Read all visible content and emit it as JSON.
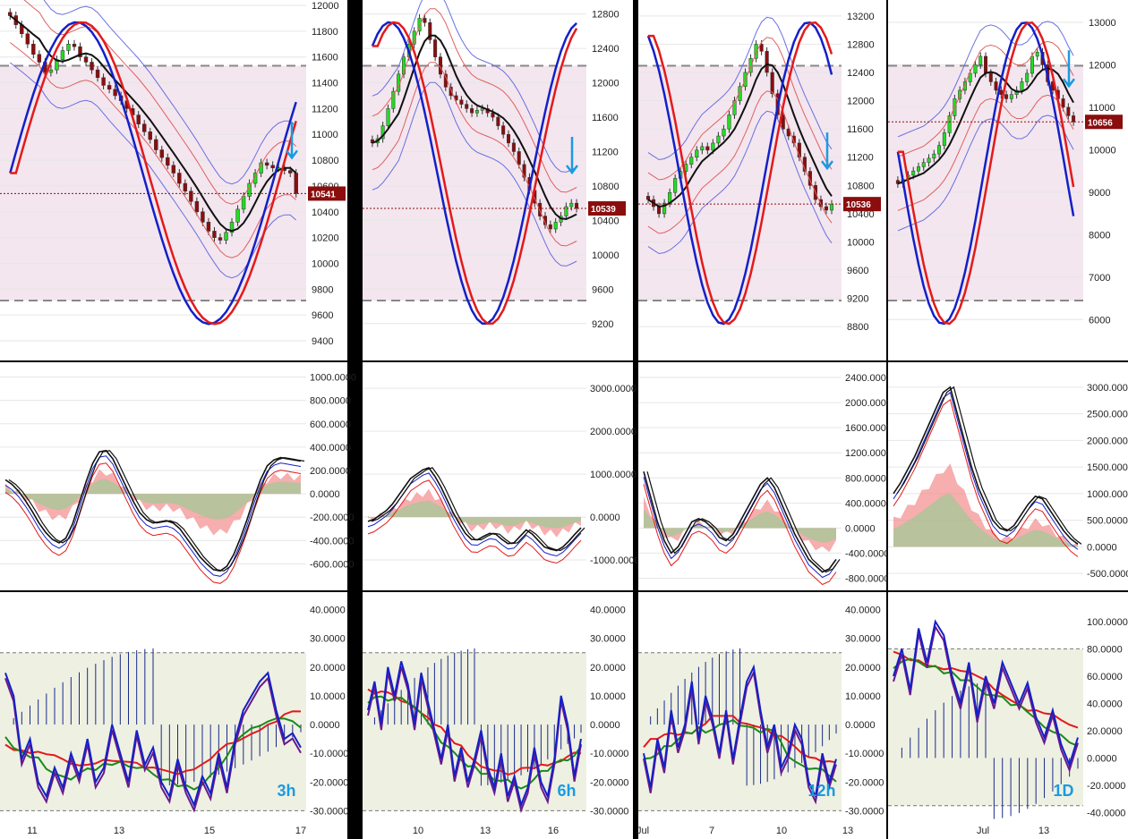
{
  "chart_data": [
    {
      "type": "candlestick",
      "timeframe": "3h",
      "current_price": "10541",
      "x_ticks": [
        "11",
        "13",
        "15",
        "17"
      ],
      "price_ticks": [
        "12000",
        "11800",
        "11600",
        "11400",
        "11200",
        "11000",
        "10800",
        "10600",
        "10400",
        "10200",
        "10000",
        "9800",
        "9600",
        "9400"
      ],
      "price_range": [
        9400,
        12000
      ],
      "price_close": [
        11920,
        11850,
        11780,
        11700,
        11620,
        11560,
        11480,
        11500,
        11580,
        11650,
        11700,
        11680,
        11600,
        11560,
        11500,
        11440,
        11380,
        11350,
        11300,
        11260,
        11200,
        11150,
        11080,
        11020,
        10960,
        10880,
        10820,
        10760,
        10700,
        10620,
        10560,
        10480,
        10400,
        10320,
        10250,
        10200,
        10180,
        10240,
        10320,
        10420,
        10520,
        10620,
        10700,
        10780,
        10760,
        10740,
        10740,
        10720,
        10700,
        10541
      ],
      "macd_ticks": [
        "1000.0000",
        "800.0000",
        "600.0000",
        "400.0000",
        "200.0000",
        "0.0000",
        "-200.0000",
        "-400.0000",
        "-600.0000"
      ],
      "macd_range": [
        -750,
        1050
      ],
      "macd_line": [
        120,
        80,
        20,
        -60,
        -150,
        -250,
        -330,
        -390,
        -420,
        -380,
        -260,
        -80,
        100,
        260,
        360,
        370,
        300,
        180,
        60,
        -60,
        -160,
        -220,
        -250,
        -240,
        -230,
        -250,
        -300,
        -380,
        -460,
        -540,
        -600,
        -650,
        -660,
        -620,
        -520,
        -380,
        -220,
        -40,
        120,
        240,
        290,
        310,
        300,
        290,
        280
      ],
      "osc_ticks": [
        "40.0000",
        "30.0000",
        "20.0000",
        "10.0000",
        "0.0000",
        "-10.0000",
        "-20.0000",
        "-30.0000"
      ],
      "osc_range": [
        -33,
        43
      ],
      "osc_line": [
        18,
        10,
        -12,
        -5,
        -20,
        -25,
        -15,
        -22,
        -10,
        -18,
        -5,
        -20,
        -15,
        0,
        -10,
        -20,
        -2,
        -14,
        -8,
        -20,
        -25,
        -12,
        -22,
        -28,
        -18,
        -24,
        -10,
        -22,
        -5,
        5,
        10,
        15,
        18,
        5,
        -5,
        -3,
        -8
      ]
    },
    {
      "type": "candlestick",
      "timeframe": "6h",
      "current_price": "10539",
      "x_ticks": [
        "10",
        "13",
        "16"
      ],
      "price_ticks": [
        "12800",
        "12400",
        "12000",
        "11600",
        "11200",
        "10800",
        "10400",
        "10000",
        "9600",
        "9200"
      ],
      "price_range": [
        9000,
        12900
      ],
      "price_close": [
        11300,
        11350,
        11500,
        11700,
        11900,
        12100,
        12300,
        12450,
        12600,
        12750,
        12700,
        12500,
        12300,
        12100,
        11950,
        11850,
        11800,
        11750,
        11700,
        11650,
        11680,
        11700,
        11650,
        11600,
        11500,
        11400,
        11300,
        11200,
        11050,
        10900,
        10750,
        10600,
        10450,
        10350,
        10300,
        10380,
        10450,
        10560,
        10600,
        10539
      ],
      "macd_ticks": [
        "3000.0000",
        "2000.0000",
        "1000.0000",
        "0.0000",
        "-1000.0000"
      ],
      "macd_range": [
        -1500,
        3400
      ],
      "macd_line": [
        -100,
        -50,
        50,
        150,
        300,
        500,
        700,
        900,
        1000,
        1100,
        1150,
        950,
        700,
        400,
        100,
        -150,
        -380,
        -520,
        -530,
        -450,
        -380,
        -400,
        -520,
        -620,
        -600,
        -450,
        -300,
        -400,
        -550,
        -700,
        -750,
        -780,
        -700,
        -560,
        -400,
        -250
      ],
      "osc_ticks": [
        "40.0000",
        "30.0000",
        "20.0000",
        "10.0000",
        "0.0000",
        "-10.0000",
        "-20.0000",
        "-30.0000"
      ],
      "osc_range": [
        -33,
        43
      ],
      "osc_line": [
        5,
        15,
        0,
        20,
        10,
        22,
        14,
        0,
        18,
        8,
        -2,
        -12,
        0,
        -18,
        -8,
        -20,
        -12,
        -2,
        -15,
        -22,
        -10,
        -25,
        -18,
        -28,
        -22,
        -8,
        -20,
        -25,
        -12,
        10,
        0,
        -18,
        -5
      ]
    },
    {
      "type": "candlestick",
      "timeframe": "12h",
      "current_price": "10536",
      "x_ticks": [
        "Jul",
        "7",
        "10",
        "13"
      ],
      "price_ticks": [
        "13200",
        "12800",
        "12400",
        "12000",
        "11600",
        "11200",
        "10800",
        "10400",
        "10000",
        "9600",
        "9200",
        "8800"
      ],
      "price_range": [
        8600,
        13350
      ],
      "price_close": [
        10600,
        10500,
        10400,
        10550,
        10700,
        10900,
        11000,
        11100,
        11200,
        11300,
        11350,
        11300,
        11400,
        11500,
        11600,
        11800,
        12000,
        12200,
        12400,
        12600,
        12800,
        12700,
        12400,
        12100,
        11800,
        11600,
        11500,
        11400,
        11200,
        11000,
        10800,
        10600,
        10500,
        10450,
        10536
      ],
      "macd_ticks": [
        "2400.0000",
        "2000.0000",
        "1600.0000",
        "1200.0000",
        "800.0000",
        "400.0000",
        "0.0000",
        "-400.0000",
        "-800.0000"
      ],
      "macd_range": [
        -850,
        2500
      ],
      "macd_line": [
        900,
        500,
        100,
        -200,
        -400,
        -300,
        -100,
        100,
        150,
        100,
        0,
        -150,
        -200,
        -100,
        100,
        300,
        500,
        700,
        800,
        650,
        400,
        150,
        -100,
        -300,
        -500,
        -600,
        -700,
        -650,
        -500
      ],
      "osc_ticks": [
        "40.0000",
        "30.0000",
        "20.0000",
        "10.0000",
        "0.0000",
        "-10.0000",
        "-20.0000",
        "-30.0000"
      ],
      "osc_range": [
        -33,
        43
      ],
      "osc_line": [
        -10,
        -22,
        -5,
        -15,
        5,
        -8,
        0,
        15,
        -5,
        10,
        2,
        -10,
        5,
        -12,
        2,
        15,
        20,
        5,
        -8,
        0,
        -15,
        -10,
        0,
        -5,
        -20,
        -25,
        -10,
        -20,
        -12
      ]
    },
    {
      "type": "candlestick",
      "timeframe": "1D",
      "current_price": "10656",
      "x_ticks": [
        "Jul",
        "13"
      ],
      "price_ticks": [
        "13000",
        "12000",
        "11000",
        "10000",
        "9000",
        "8000",
        "7000",
        "6000"
      ],
      "price_range": [
        5500,
        13400
      ],
      "price_close": [
        9200,
        9300,
        9400,
        9500,
        9600,
        9700,
        9800,
        9900,
        10100,
        10400,
        10800,
        11200,
        11400,
        11600,
        11800,
        12000,
        12200,
        11800,
        11600,
        11400,
        11300,
        11200,
        11300,
        11400,
        11600,
        11800,
        12200,
        12300,
        12000,
        11600,
        11400,
        11200,
        11000,
        10800,
        10656
      ],
      "macd_ticks": [
        "3000.0000",
        "2500.0000",
        "2000.0000",
        "1500.0000",
        "1000.0000",
        "500.0000",
        "0.0000",
        "-500.0000"
      ],
      "macd_range": [
        -650,
        3300
      ],
      "macd_line": [
        1000,
        1200,
        1450,
        1700,
        2000,
        2300,
        2600,
        2900,
        3000,
        2500,
        2000,
        1500,
        1100,
        800,
        500,
        350,
        300,
        400,
        600,
        800,
        950,
        900,
        700,
        500,
        300,
        150,
        50
      ],
      "osc_ticks": [
        "100.0000",
        "80.0000",
        "60.0000",
        "40.0000",
        "20.0000",
        "0.0000",
        "-20.0000",
        "-40.0000"
      ],
      "osc_range": [
        -45,
        115
      ],
      "osc_line": [
        60,
        80,
        50,
        95,
        70,
        100,
        90,
        60,
        40,
        70,
        30,
        60,
        40,
        70,
        55,
        40,
        55,
        30,
        15,
        35,
        10,
        -5,
        15
      ]
    }
  ]
}
